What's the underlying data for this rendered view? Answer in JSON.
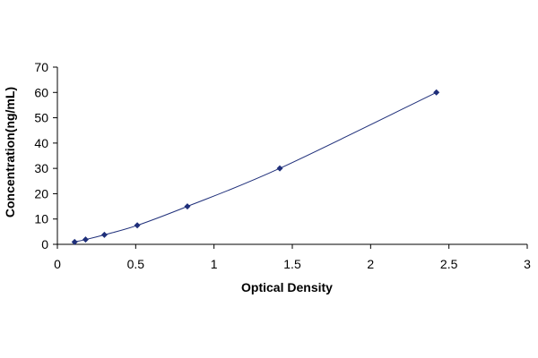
{
  "chart_data": {
    "type": "scatter",
    "title": "",
    "xlabel": "Optical Density",
    "ylabel": "Concentration(ng/mL)",
    "xlim": [
      0,
      3
    ],
    "ylim": [
      0,
      70
    ],
    "x_ticks": [
      0,
      0.5,
      1,
      1.5,
      2,
      2.5,
      3
    ],
    "x_tick_labels": [
      "0",
      "0.5",
      "1",
      "1.5",
      "2",
      "2.5",
      "3"
    ],
    "y_ticks": [
      0,
      10,
      20,
      30,
      40,
      50,
      60,
      70
    ],
    "y_tick_labels": [
      "0",
      "10",
      "20",
      "30",
      "40",
      "50",
      "60",
      "70"
    ],
    "grid": false,
    "legend": "none",
    "trendline": "smooth curve through points",
    "series": [
      {
        "x": [
          0.11,
          0.18,
          0.3,
          0.51,
          0.83,
          1.42,
          2.42
        ],
        "y": [
          0.94,
          1.88,
          3.75,
          7.5,
          15,
          30,
          60
        ],
        "marker": "diamond",
        "color": "#1f2f7a"
      }
    ]
  }
}
